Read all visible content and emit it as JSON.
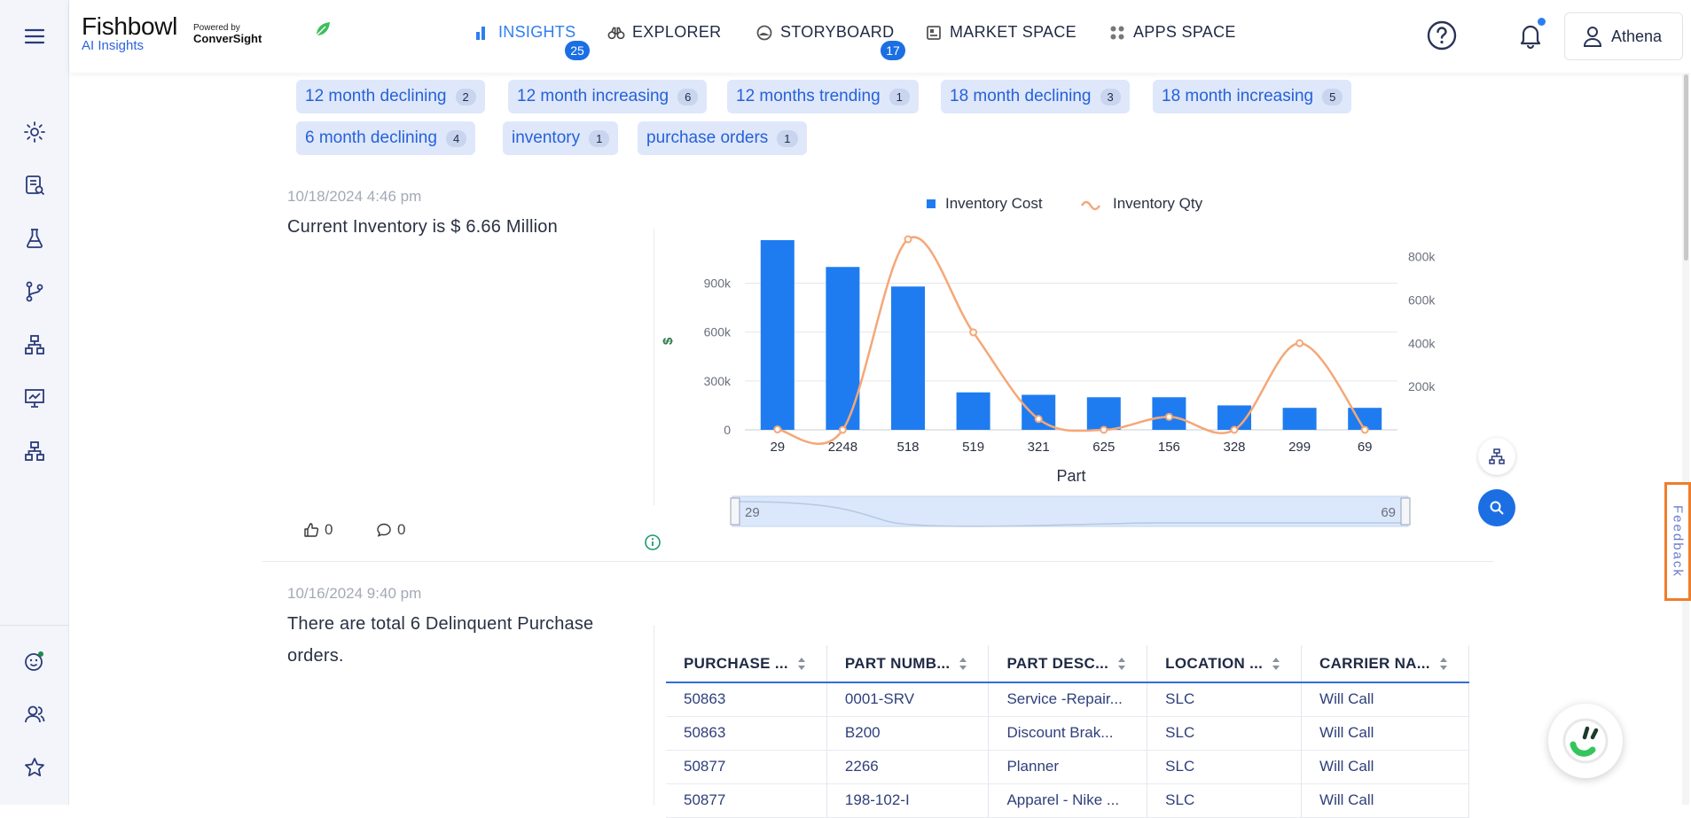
{
  "app": {
    "brand_main": "Fishbowl",
    "brand_sub": "AI Insights",
    "powered_by": "Powered by",
    "powered_brand": "ConverSight"
  },
  "nav": {
    "items": [
      {
        "label": "INSIGHTS",
        "badge": "25",
        "icon": "bar-chart-icon"
      },
      {
        "label": "EXPLORER",
        "badge": "",
        "icon": "binoculars-icon"
      },
      {
        "label": "STORYBOARD",
        "badge": "17",
        "icon": "storyboard-icon"
      },
      {
        "label": "MARKET SPACE",
        "badge": "",
        "icon": "market-icon"
      },
      {
        "label": "APPS SPACE",
        "badge": "",
        "icon": "apps-grid-icon"
      }
    ]
  },
  "user": {
    "name": "Athena"
  },
  "tags": [
    {
      "label": "12 month declining",
      "count": "2"
    },
    {
      "label": "12 month increasing",
      "count": "6"
    },
    {
      "label": "12 months trending",
      "count": "1"
    },
    {
      "label": "18 month declining",
      "count": "3"
    },
    {
      "label": "18 month increasing",
      "count": "5"
    },
    {
      "label": "6 month declining",
      "count": "4"
    },
    {
      "label": "inventory",
      "count": "1"
    },
    {
      "label": "purchase orders",
      "count": "1"
    }
  ],
  "insight1": {
    "timestamp": "10/18/2024 4:46 pm",
    "text": "Current Inventory is $ 6.66 Million",
    "likes": "0",
    "comments": "0"
  },
  "chart_data": {
    "type": "bar",
    "categories": [
      "29",
      "2248",
      "518",
      "519",
      "321",
      "625",
      "156",
      "328",
      "299",
      "69"
    ],
    "series": [
      {
        "name": "Inventory Cost",
        "type": "bar",
        "axis": "left",
        "values": [
          1165000,
          1000000,
          880000,
          230000,
          215000,
          200000,
          200000,
          150000,
          135000,
          135000
        ]
      },
      {
        "name": "Inventory Qty",
        "type": "line",
        "axis": "right",
        "values": [
          2000,
          0,
          880000,
          450000,
          50000,
          0,
          60000,
          0,
          400000,
          0
        ]
      }
    ],
    "xlabel": "Part",
    "ylabel": "$",
    "ylim": [
      0,
      1170000
    ],
    "y2lim": [
      0,
      880000
    ],
    "yticks": [
      "0",
      "300k",
      "600k",
      "900k"
    ],
    "y2ticks": [
      "200k",
      "400k",
      "600k",
      "800k"
    ],
    "legend": "top",
    "zoom_start": "29",
    "zoom_end": "69",
    "colors": {
      "bar": "#1f7cf0",
      "line": "#f5a778"
    }
  },
  "insight2": {
    "timestamp": "10/16/2024 9:40 pm",
    "text_line1": "There are total 6 Delinquent Purchase",
    "text_line2": "orders."
  },
  "table": {
    "headers": [
      "PURCHASE ...",
      "PART NUMB...",
      "PART DESC...",
      "LOCATION ...",
      "CARRIER NA..."
    ],
    "rows": [
      [
        "50863",
        "0001-SRV",
        "Service -Repair...",
        "SLC",
        "Will Call"
      ],
      [
        "50863",
        "B200",
        "Discount Brak...",
        "SLC",
        "Will Call"
      ],
      [
        "50877",
        "2266",
        "Planner",
        "SLC",
        "Will Call"
      ],
      [
        "50877",
        "198-102-I",
        "Apparel - Nike ...",
        "SLC",
        "Will Call"
      ]
    ]
  },
  "feedback": {
    "label": "Feedback"
  }
}
